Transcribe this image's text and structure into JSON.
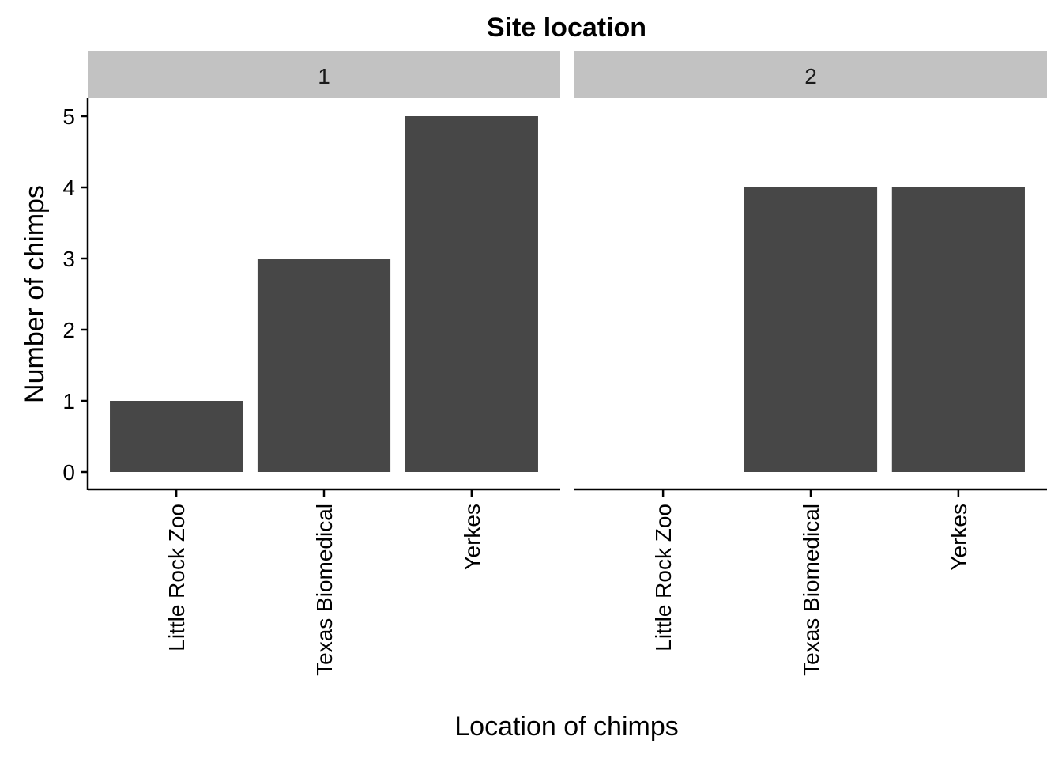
{
  "chart_data": {
    "type": "bar",
    "title": "Site location",
    "xlabel": "Location of chimps",
    "ylabel": "Number of chimps",
    "categories": [
      "Little Rock Zoo",
      "Texas Biomedical",
      "Yerkes"
    ],
    "ylim": [
      0,
      5
    ],
    "yticks": [
      0,
      1,
      2,
      3,
      4,
      5
    ],
    "facets": [
      {
        "label": "1",
        "values": [
          1,
          3,
          5
        ]
      },
      {
        "label": "2",
        "values": [
          0,
          4,
          4
        ]
      }
    ],
    "colors": {
      "bar": "#474747",
      "strip": "#c2c2c2"
    },
    "grid": false
  }
}
